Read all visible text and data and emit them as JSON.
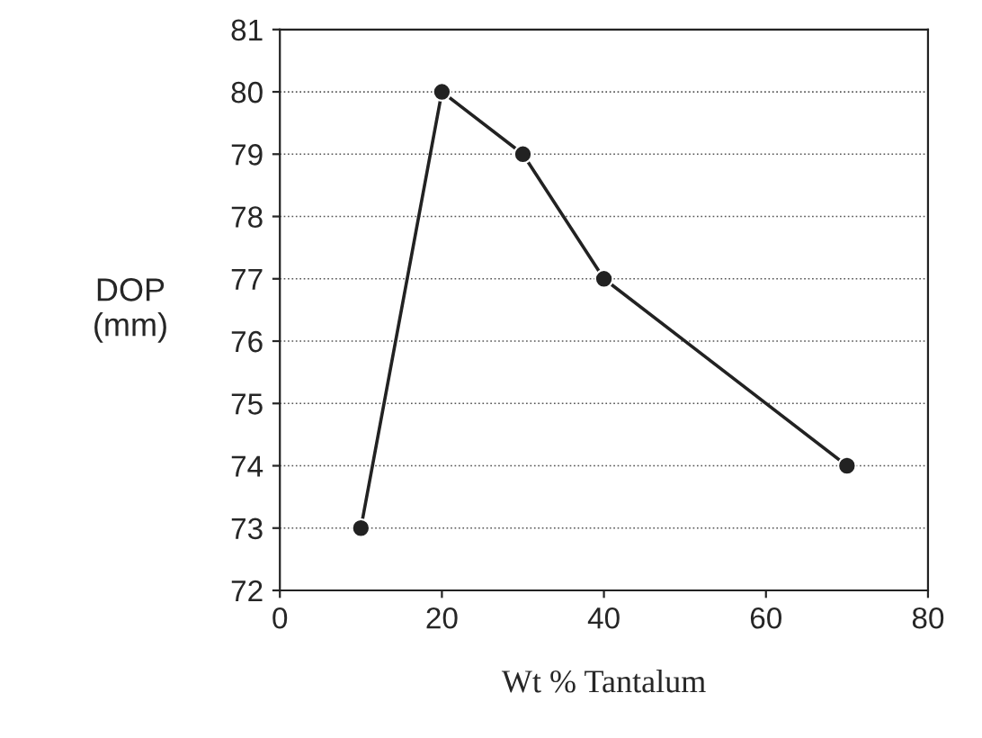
{
  "chart_data": {
    "type": "line",
    "xlabel": "Wt % Tantalum",
    "ylabel": "DOP\n(mm)",
    "x": [
      10,
      20,
      30,
      40,
      70
    ],
    "series": [
      {
        "color": "#222222",
        "values": [
          73,
          80,
          79,
          77,
          74
        ]
      }
    ],
    "xlim": [
      0,
      80
    ],
    "xticks": [
      0,
      20,
      40,
      60,
      80
    ],
    "ylim": [
      72,
      81
    ],
    "yticks": [
      72,
      73,
      74,
      75,
      76,
      77,
      78,
      79,
      80,
      81
    ],
    "grid": "y",
    "marker": "circle",
    "line_style": "solid",
    "legend": false
  }
}
